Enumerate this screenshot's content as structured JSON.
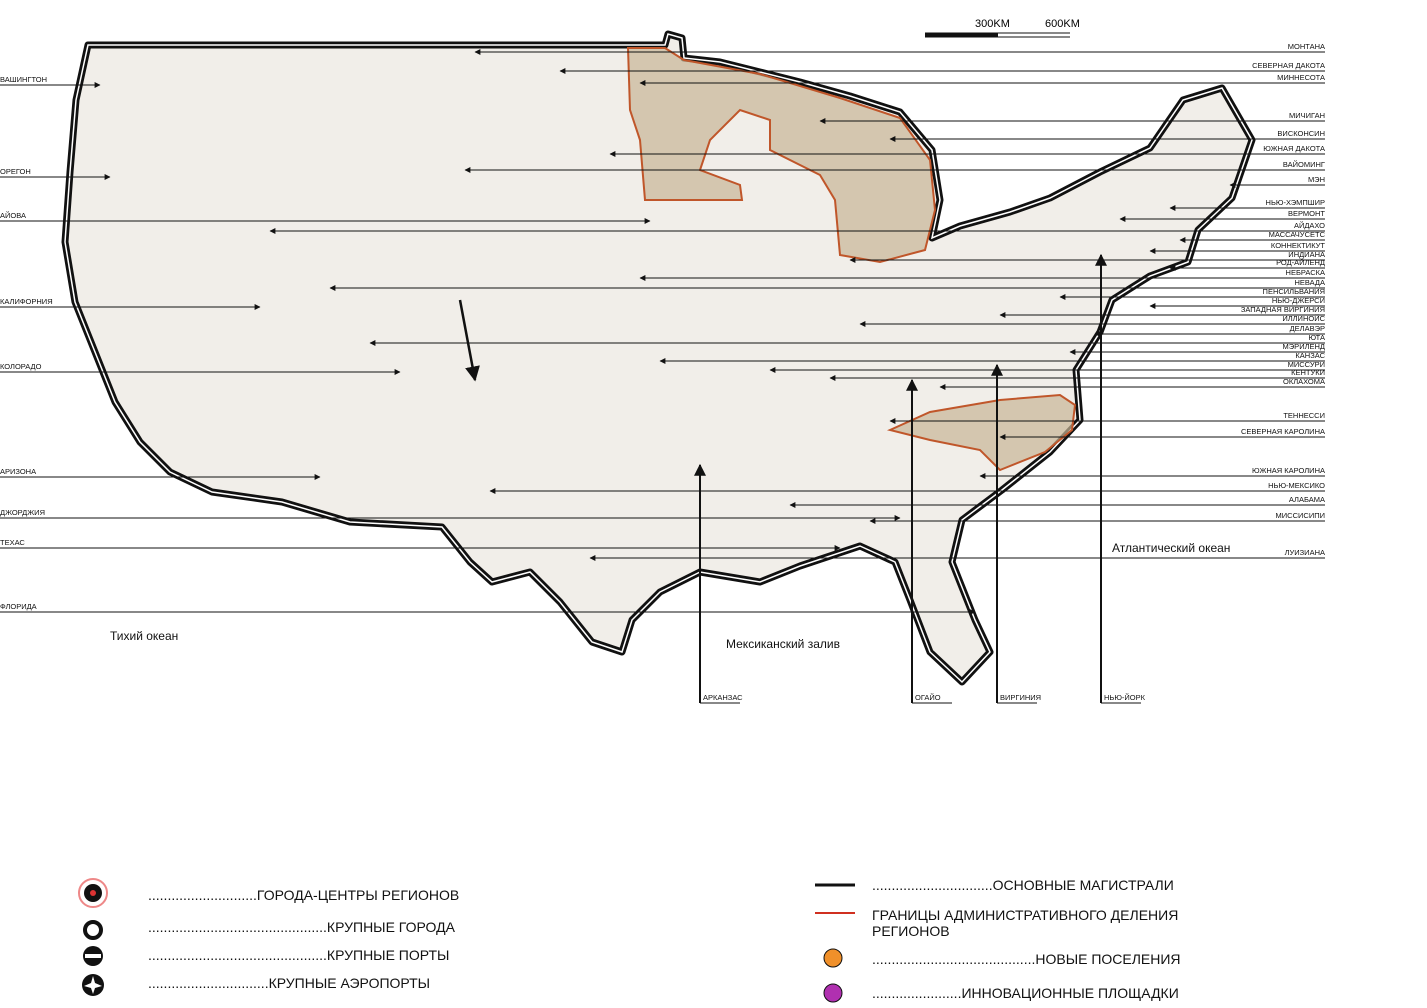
{
  "scale": {
    "labels": [
      "300KM",
      "600KM"
    ]
  },
  "left_labels": [
    "ВАШИНГТОН",
    "ОРЕГОН",
    "АЙОВА",
    "КАЛИФОРНИЯ",
    "КОЛОРАДО",
    "АРИЗОНА",
    "ДЖОРДЖИЯ",
    "ТЕХАС",
    "ФЛОРИДА"
  ],
  "right_labels": [
    "МОНТАНА",
    "СЕВЕРНАЯ ДАКОТА",
    "МИННЕСОТА",
    "МИЧИГАН",
    "ВИСКОНСИН",
    "ЮЖНАЯ ДАКОТА",
    "ВАЙОМИНГ",
    "МЭН",
    "НЬЮ-ХЭМПШИР",
    "ВЕРМОНТ",
    "АЙДАХО",
    "МАССАЧУСЕТС",
    "КОННЕКТИКУТ",
    "ИНДИАНА",
    "РОД-АЙЛЕНД",
    "НЕБРАСКА",
    "НЕВАДА",
    "ПЕНСИЛЬВАНИЯ",
    "НЬЮ-ДЖЕРСИ",
    "ЗАПАДНАЯ ВИРГИНИЯ",
    "ИЛЛИНОЙС",
    "ДЕЛАВЭР",
    "ЮТА",
    "МЭРИЛЕНД",
    "КАНЗАС",
    "МИССУРИ",
    "КЕНТУКИ",
    "ОКЛАХОМА",
    "ТЕННЕССИ",
    "СЕВЕРНАЯ КАРОЛИНА",
    "ЮЖНАЯ КАРОЛИНА",
    "НЬЮ-МЕКСИКО",
    "АЛАБАМА",
    "МИССИСИПИ",
    "ЛУИЗИАНА"
  ],
  "bottom_labels": [
    "АРКАНЗАС",
    "ОГАЙО",
    "ВИРГИНИЯ",
    "НЬЮ-ЙОРК"
  ],
  "oceans": [
    "Тихий океан",
    "Мексиканский залив",
    "Атлантический океан"
  ],
  "legend": {
    "left": [
      "............................ГОРОДА-ЦЕНТРЫ РЕГИОНОВ",
      "..............................................КРУПНЫЕ ГОРОДА",
      "..............................................КРУПНЫЕ ПОРТЫ",
      "...............................КРУПНЫЕ АЭРОПОРТЫ"
    ],
    "right": [
      {
        "lines": [
          "...............................ОСНОВНЫЕ МАГИСТРАЛИ"
        ]
      },
      {
        "lines": [
          "ГРАНИЦЫ АДМИНИСТРАТИВНОГО ДЕЛЕНИЯ",
          "РЕГИОНОВ"
        ]
      },
      {
        "lines": [
          "..........................................НОВЫЕ ПОСЕЛЕНИЯ"
        ]
      },
      {
        "lines": [
          ".......................ИННОВАЦИОННЫЕ ПЛОЩАДКИ"
        ]
      }
    ]
  }
}
